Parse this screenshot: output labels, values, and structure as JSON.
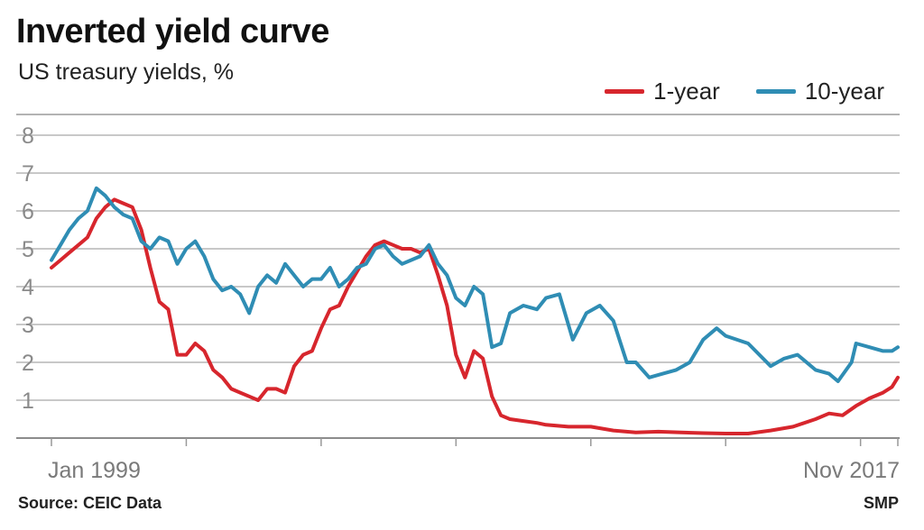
{
  "chart_data": {
    "type": "line",
    "title": "Inverted yield curve",
    "subtitle": "US treasury yields, %",
    "xlabel": "",
    "ylabel": "",
    "x_range": [
      1999.0,
      2017.83
    ],
    "ylim": [
      0,
      8
    ],
    "y_ticks": [
      "1",
      "2",
      "3",
      "4",
      "5",
      "6",
      "7",
      "8"
    ],
    "x_tick_labels": [
      {
        "x": 1999.0,
        "label": "Jan 1999"
      },
      {
        "x": 2017.83,
        "label": "Nov 2017"
      }
    ],
    "grid": true,
    "legend_position": "top-right",
    "series": [
      {
        "name": "1-year",
        "color": "#d7262d",
        "points": [
          [
            1999.0,
            4.5
          ],
          [
            1999.2,
            4.7
          ],
          [
            1999.4,
            4.9
          ],
          [
            1999.6,
            5.1
          ],
          [
            1999.8,
            5.3
          ],
          [
            2000.0,
            5.8
          ],
          [
            2000.2,
            6.1
          ],
          [
            2000.4,
            6.3
          ],
          [
            2000.6,
            6.2
          ],
          [
            2000.8,
            6.1
          ],
          [
            2001.0,
            5.5
          ],
          [
            2001.2,
            4.5
          ],
          [
            2001.4,
            3.6
          ],
          [
            2001.6,
            3.4
          ],
          [
            2001.8,
            2.2
          ],
          [
            2002.0,
            2.2
          ],
          [
            2002.2,
            2.5
          ],
          [
            2002.4,
            2.3
          ],
          [
            2002.6,
            1.8
          ],
          [
            2002.8,
            1.6
          ],
          [
            2003.0,
            1.3
          ],
          [
            2003.2,
            1.2
          ],
          [
            2003.4,
            1.1
          ],
          [
            2003.6,
            1.0
          ],
          [
            2003.8,
            1.3
          ],
          [
            2004.0,
            1.3
          ],
          [
            2004.2,
            1.2
          ],
          [
            2004.4,
            1.9
          ],
          [
            2004.6,
            2.2
          ],
          [
            2004.8,
            2.3
          ],
          [
            2005.0,
            2.9
          ],
          [
            2005.2,
            3.4
          ],
          [
            2005.4,
            3.5
          ],
          [
            2005.6,
            4.0
          ],
          [
            2005.8,
            4.4
          ],
          [
            2006.0,
            4.8
          ],
          [
            2006.2,
            5.1
          ],
          [
            2006.4,
            5.2
          ],
          [
            2006.6,
            5.1
          ],
          [
            2006.8,
            5.0
          ],
          [
            2007.0,
            5.0
          ],
          [
            2007.2,
            4.9
          ],
          [
            2007.4,
            5.0
          ],
          [
            2007.6,
            4.3
          ],
          [
            2007.8,
            3.5
          ],
          [
            2008.0,
            2.2
          ],
          [
            2008.2,
            1.6
          ],
          [
            2008.4,
            2.3
          ],
          [
            2008.6,
            2.1
          ],
          [
            2008.8,
            1.1
          ],
          [
            2009.0,
            0.6
          ],
          [
            2009.2,
            0.5
          ],
          [
            2009.5,
            0.45
          ],
          [
            2009.8,
            0.4
          ],
          [
            2010.0,
            0.35
          ],
          [
            2010.5,
            0.3
          ],
          [
            2011.0,
            0.3
          ],
          [
            2011.5,
            0.2
          ],
          [
            2012.0,
            0.15
          ],
          [
            2012.5,
            0.17
          ],
          [
            2013.0,
            0.15
          ],
          [
            2013.5,
            0.13
          ],
          [
            2014.0,
            0.12
          ],
          [
            2014.5,
            0.12
          ],
          [
            2015.0,
            0.2
          ],
          [
            2015.5,
            0.3
          ],
          [
            2016.0,
            0.5
          ],
          [
            2016.3,
            0.65
          ],
          [
            2016.6,
            0.6
          ],
          [
            2016.9,
            0.85
          ],
          [
            2017.2,
            1.05
          ],
          [
            2017.5,
            1.2
          ],
          [
            2017.7,
            1.35
          ],
          [
            2017.83,
            1.6
          ]
        ]
      },
      {
        "name": "10-year",
        "color": "#2f8db4",
        "points": [
          [
            1999.0,
            4.7
          ],
          [
            1999.2,
            5.1
          ],
          [
            1999.4,
            5.5
          ],
          [
            1999.6,
            5.8
          ],
          [
            1999.8,
            6.0
          ],
          [
            2000.0,
            6.6
          ],
          [
            2000.1,
            6.5
          ],
          [
            2000.2,
            6.4
          ],
          [
            2000.4,
            6.1
          ],
          [
            2000.6,
            5.9
          ],
          [
            2000.8,
            5.8
          ],
          [
            2001.0,
            5.2
          ],
          [
            2001.2,
            5.0
          ],
          [
            2001.4,
            5.3
          ],
          [
            2001.6,
            5.2
          ],
          [
            2001.8,
            4.6
          ],
          [
            2002.0,
            5.0
          ],
          [
            2002.2,
            5.2
          ],
          [
            2002.4,
            4.8
          ],
          [
            2002.6,
            4.2
          ],
          [
            2002.8,
            3.9
          ],
          [
            2003.0,
            4.0
          ],
          [
            2003.2,
            3.8
          ],
          [
            2003.4,
            3.3
          ],
          [
            2003.6,
            4.0
          ],
          [
            2003.8,
            4.3
          ],
          [
            2004.0,
            4.1
          ],
          [
            2004.2,
            4.6
          ],
          [
            2004.4,
            4.3
          ],
          [
            2004.6,
            4.0
          ],
          [
            2004.8,
            4.2
          ],
          [
            2005.0,
            4.2
          ],
          [
            2005.2,
            4.5
          ],
          [
            2005.4,
            4.0
          ],
          [
            2005.6,
            4.2
          ],
          [
            2005.8,
            4.5
          ],
          [
            2006.0,
            4.6
          ],
          [
            2006.2,
            5.0
          ],
          [
            2006.4,
            5.1
          ],
          [
            2006.6,
            4.8
          ],
          [
            2006.8,
            4.6
          ],
          [
            2007.0,
            4.7
          ],
          [
            2007.2,
            4.8
          ],
          [
            2007.4,
            5.1
          ],
          [
            2007.6,
            4.6
          ],
          [
            2007.8,
            4.3
          ],
          [
            2008.0,
            3.7
          ],
          [
            2008.2,
            3.5
          ],
          [
            2008.4,
            4.0
          ],
          [
            2008.6,
            3.8
          ],
          [
            2008.8,
            2.4
          ],
          [
            2009.0,
            2.5
          ],
          [
            2009.2,
            3.3
          ],
          [
            2009.5,
            3.5
          ],
          [
            2009.8,
            3.4
          ],
          [
            2010.0,
            3.7
          ],
          [
            2010.3,
            3.8
          ],
          [
            2010.6,
            2.6
          ],
          [
            2010.9,
            3.3
          ],
          [
            2011.2,
            3.5
          ],
          [
            2011.5,
            3.1
          ],
          [
            2011.8,
            2.0
          ],
          [
            2012.0,
            2.0
          ],
          [
            2012.3,
            1.6
          ],
          [
            2012.6,
            1.7
          ],
          [
            2012.9,
            1.8
          ],
          [
            2013.2,
            2.0
          ],
          [
            2013.5,
            2.6
          ],
          [
            2013.8,
            2.9
          ],
          [
            2014.0,
            2.7
          ],
          [
            2014.5,
            2.5
          ],
          [
            2015.0,
            1.9
          ],
          [
            2015.3,
            2.1
          ],
          [
            2015.6,
            2.2
          ],
          [
            2016.0,
            1.8
          ],
          [
            2016.3,
            1.7
          ],
          [
            2016.5,
            1.5
          ],
          [
            2016.8,
            2.0
          ],
          [
            2016.9,
            2.5
          ],
          [
            2017.2,
            2.4
          ],
          [
            2017.5,
            2.3
          ],
          [
            2017.7,
            2.3
          ],
          [
            2017.83,
            2.4
          ]
        ]
      }
    ]
  },
  "footer": {
    "source": "Source: CEIC Data",
    "credit": "SMP"
  }
}
